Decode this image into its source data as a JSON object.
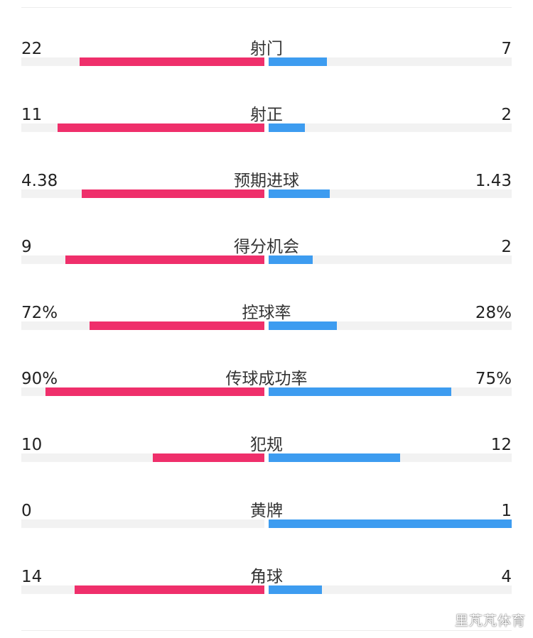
{
  "colors": {
    "home": "#ef2f6b",
    "away": "#3d9cf0",
    "track": "#f2f2f2"
  },
  "stats": [
    {
      "label": "射门",
      "left": "22",
      "right": "7",
      "left_fraction": 0.76,
      "right_fraction": 0.24
    },
    {
      "label": "射正",
      "left": "11",
      "right": "2",
      "left_fraction": 0.85,
      "right_fraction": 0.15
    },
    {
      "label": "预期进球",
      "left": "4.38",
      "right": "1.43",
      "left_fraction": 0.75,
      "right_fraction": 0.25
    },
    {
      "label": "得分机会",
      "left": "9",
      "right": "2",
      "left_fraction": 0.82,
      "right_fraction": 0.18
    },
    {
      "label": "控球率",
      "left": "72%",
      "right": "28%",
      "left_fraction": 0.72,
      "right_fraction": 0.28
    },
    {
      "label": "传球成功率",
      "left": "90%",
      "right": "75%",
      "left_fraction": 0.9,
      "right_fraction": 0.75
    },
    {
      "label": "犯规",
      "left": "10",
      "right": "12",
      "left_fraction": 0.46,
      "right_fraction": 0.54
    },
    {
      "label": "黄牌",
      "left": "0",
      "right": "1",
      "left_fraction": 0.0,
      "right_fraction": 1.0
    },
    {
      "label": "角球",
      "left": "14",
      "right": "4",
      "left_fraction": 0.78,
      "right_fraction": 0.22
    }
  ],
  "watermark": "里芃芃体育"
}
